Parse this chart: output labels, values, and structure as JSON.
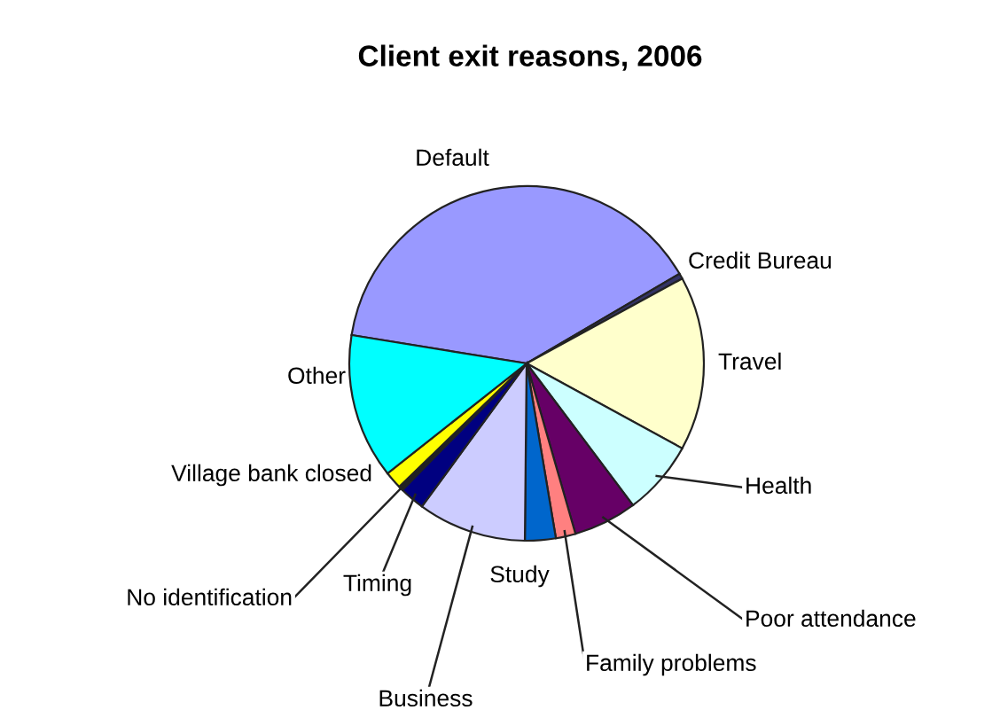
{
  "chart_data": {
    "type": "pie",
    "title": "Client exit reasons, 2006",
    "categories": [
      "Default",
      "Credit Bureau",
      "Travel",
      "Health",
      "Poor attendance",
      "Family problems",
      "Study",
      "Business",
      "Timing",
      "No identification",
      "Village bank closed",
      "Other"
    ],
    "values": [
      39.0,
      0.5,
      15.9,
      6.8,
      5.8,
      1.8,
      2.8,
      9.9,
      2.3,
      0.4,
      1.6,
      13.2
    ],
    "colors": [
      "#9999ff",
      "#333366",
      "#ffffcc",
      "#ccffff",
      "#660066",
      "#ff8080",
      "#0066cc",
      "#ccccff",
      "#000080",
      "#222222",
      "#ffff00",
      "#00ffff"
    ],
    "legend": false
  }
}
